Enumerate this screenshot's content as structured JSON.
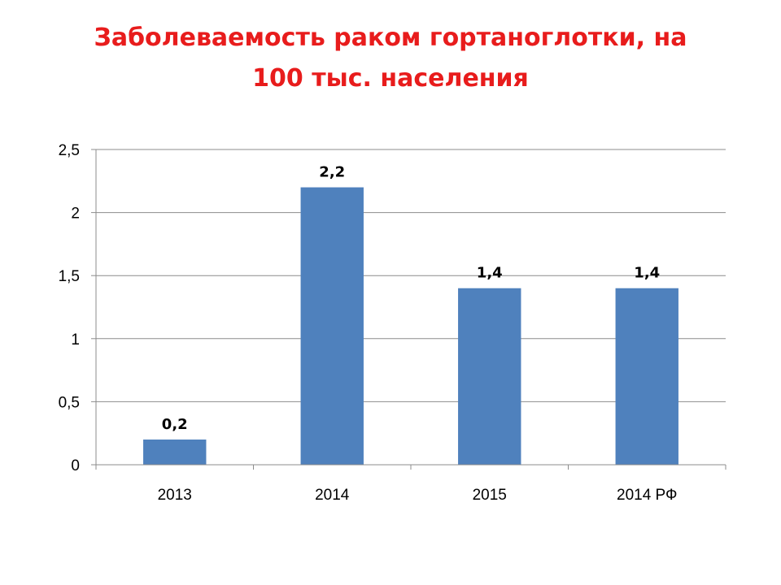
{
  "slide": {
    "title_line1": "Заболеваемость раком гортаноглотки, на",
    "title_line2": "100 тыс. населения"
  },
  "chart_data": {
    "type": "bar",
    "title": "Заболеваемость раком гортаноглотки, на 100 тыс. населения",
    "categories": [
      "2013",
      "2014",
      "2015",
      "2014 РФ"
    ],
    "values": [
      0.2,
      2.2,
      1.4,
      1.4
    ],
    "data_labels": [
      "0,2",
      "2,2",
      "1,4",
      "1,4"
    ],
    "xlabel": "",
    "ylabel": "",
    "ylim": [
      0,
      2.5
    ],
    "yticks": [
      0,
      0.5,
      1,
      1.5,
      2,
      2.5
    ],
    "ytick_labels": [
      "0",
      "0,5",
      "1",
      "1,5",
      "2",
      "2,5"
    ],
    "grid": true,
    "legend": "none",
    "bar_color": "#4f81bd",
    "gridline_color": "#8c8c8c"
  }
}
